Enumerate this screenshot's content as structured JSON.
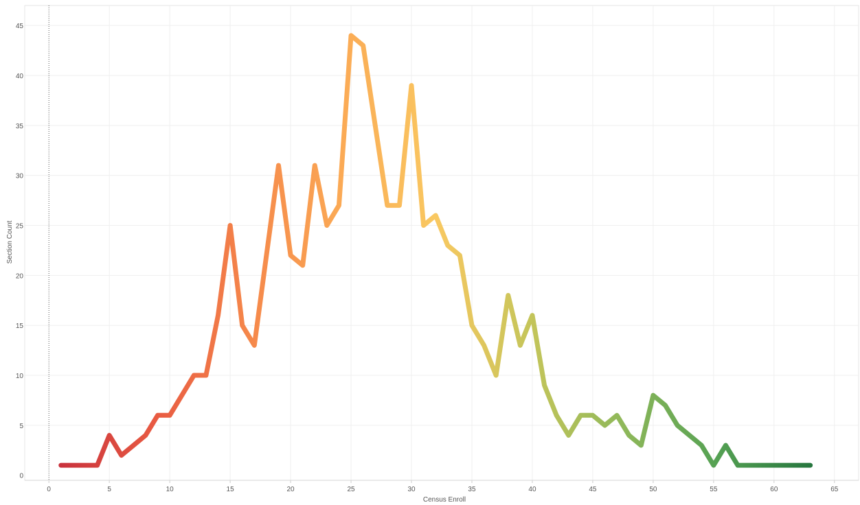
{
  "chart_data": {
    "type": "line",
    "xlabel": "Census Enroll",
    "ylabel": "Section Count",
    "xlim": [
      -2,
      67
    ],
    "ylim": [
      -0.5,
      47
    ],
    "x_ticks": [
      0,
      5,
      10,
      15,
      20,
      25,
      30,
      35,
      40,
      45,
      50,
      55,
      60,
      65
    ],
    "y_ticks": [
      0,
      5,
      10,
      15,
      20,
      25,
      30,
      35,
      40,
      45
    ],
    "grid": true,
    "zero_line": "dotted",
    "line_gradient": [
      "#c9323c",
      "#e85a42",
      "#f5874a",
      "#fbaa55",
      "#f9c861",
      "#c5c55a",
      "#8fb85a",
      "#55a153",
      "#27773f"
    ],
    "series": [
      {
        "x": [
          1,
          2,
          3,
          4,
          5,
          6,
          7,
          8,
          9,
          10,
          11,
          12,
          13,
          14,
          15,
          16,
          17,
          18,
          19,
          20,
          21,
          22,
          23,
          24,
          25,
          26,
          27,
          28,
          29,
          30,
          31,
          32,
          33,
          34,
          35,
          36,
          37,
          38,
          39,
          40,
          41,
          42,
          43,
          44,
          45,
          46,
          47,
          48,
          49,
          50,
          51,
          52,
          53,
          54,
          55,
          56,
          57,
          58,
          59,
          60,
          61,
          62,
          63
        ],
        "values": [
          1,
          1,
          1,
          1,
          4,
          2,
          3,
          4,
          6,
          6,
          8,
          10,
          10,
          16,
          25,
          15,
          13,
          22,
          31,
          22,
          21,
          31,
          25,
          27,
          44,
          43,
          35,
          27,
          27,
          39,
          25,
          26,
          23,
          22,
          15,
          13,
          10,
          18,
          13,
          16,
          9,
          6,
          4,
          6,
          6,
          5,
          6,
          4,
          3,
          8,
          7,
          5,
          4,
          3,
          1,
          3,
          1,
          1,
          1,
          1,
          1,
          1,
          1
        ]
      }
    ]
  }
}
